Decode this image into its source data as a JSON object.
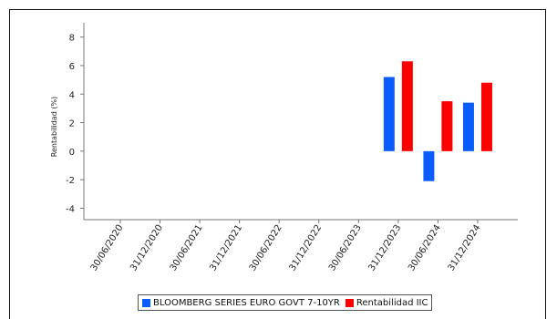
{
  "chart_data": {
    "type": "bar",
    "categories": [
      "30/06/2020",
      "31/12/2020",
      "30/06/2021",
      "31/12/2021",
      "30/06/2022",
      "31/12/2022",
      "30/06/2023",
      "31/12/2023",
      "30/06/2024",
      "31/12/2024"
    ],
    "series": [
      {
        "name": "BLOOMBERG SERIES EURO GOVT 7-10YR",
        "color": "#0a5cff",
        "values": [
          null,
          null,
          null,
          null,
          null,
          null,
          null,
          5.2,
          -2.1,
          3.4
        ]
      },
      {
        "name": "Rentabilidad IIC",
        "color": "#ff0000",
        "values": [
          null,
          null,
          null,
          null,
          null,
          null,
          null,
          6.3,
          3.5,
          4.8
        ]
      }
    ],
    "title": "",
    "xlabel": "",
    "ylabel": "Rentabilidad (%)",
    "ylim": [
      -4.8,
      9
    ],
    "yticks": [
      8,
      6,
      4,
      2,
      0,
      -2,
      -4
    ],
    "grid": false,
    "legend_position": "bottom"
  }
}
